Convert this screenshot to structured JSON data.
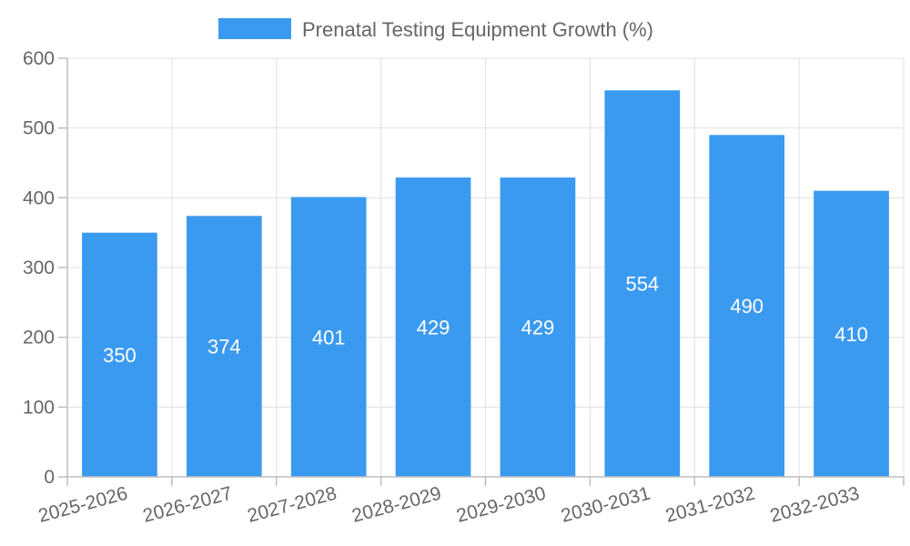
{
  "chart_data": {
    "type": "bar",
    "title": "",
    "xlabel": "",
    "ylabel": "",
    "categories": [
      "2025-2026",
      "2026-2027",
      "2027-2028",
      "2028-2029",
      "2029-2030",
      "2030-2031",
      "2031-2032",
      "2032-2033"
    ],
    "series": [
      {
        "name": "Prenatal Testing Equipment Growth (%)",
        "values": [
          350,
          374,
          401,
          429,
          429,
          554,
          490,
          410
        ],
        "color": "#3a9af0"
      }
    ],
    "ylim": [
      0,
      600
    ],
    "yticks": [
      "0",
      "100",
      "200",
      "300",
      "400",
      "500",
      "600"
    ],
    "grid": true,
    "legend_position": "top-center",
    "data_labels": [
      "350",
      "374",
      "401",
      "429",
      "429",
      "554",
      "490",
      "410"
    ]
  }
}
